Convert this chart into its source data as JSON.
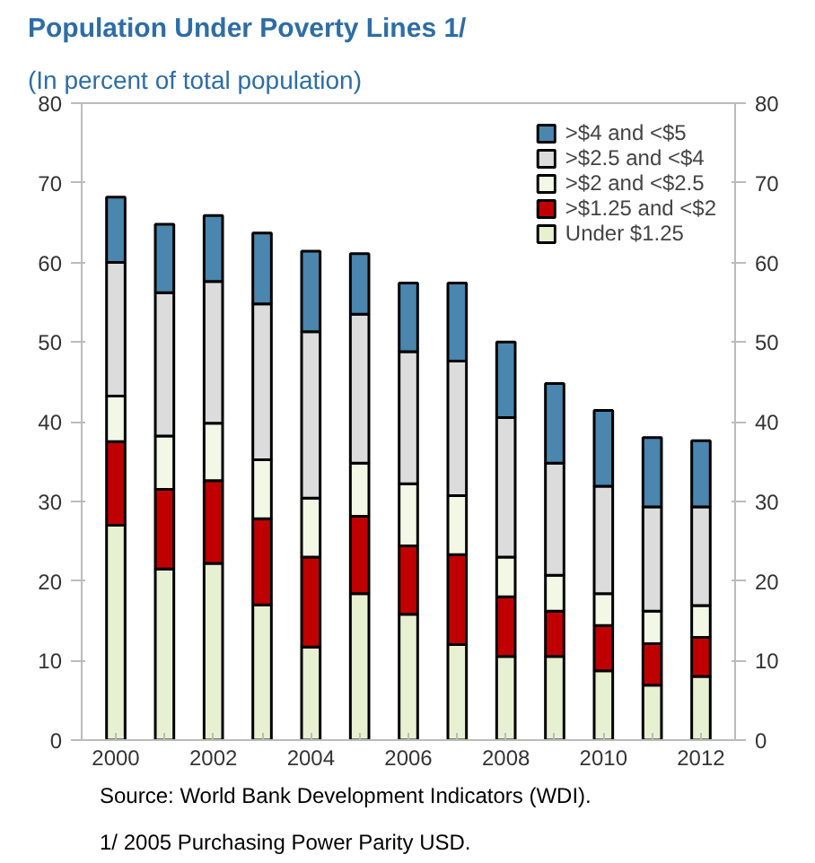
{
  "chart_data": {
    "type": "bar",
    "stacked": true,
    "title": "Population Under Poverty Lines 1/",
    "subtitle": "(In percent of total population)",
    "x": [
      2000,
      2001,
      2002,
      2003,
      2004,
      2005,
      2006,
      2007,
      2008,
      2009,
      2010,
      2011,
      2012
    ],
    "xlim": [
      1999.3,
      2012.7
    ],
    "xticks": [
      2000,
      2002,
      2004,
      2006,
      2008,
      2010,
      2012
    ],
    "ylim": [
      0,
      80
    ],
    "yticks": [
      0,
      10,
      20,
      30,
      40,
      50,
      60,
      70,
      80
    ],
    "y2lim": [
      0,
      80
    ],
    "y2ticks": [
      0,
      10,
      20,
      30,
      40,
      50,
      60,
      70,
      80
    ],
    "grid": false,
    "legend": "top right",
    "series": [
      {
        "name": "Under $1.25",
        "color": "#e8f0d2",
        "values": [
          27,
          21.5,
          22.2,
          17,
          11.7,
          18.4,
          15.8,
          12,
          10.5,
          10.5,
          8.7,
          6.9,
          8
        ]
      },
      {
        "name": ">$1.25 and <$2",
        "color": "#c00000",
        "values": [
          10.5,
          10,
          10.4,
          10.8,
          11.3,
          9.7,
          8.6,
          11.3,
          7.5,
          5.7,
          5.7,
          5.2,
          4.9
        ]
      },
      {
        "name": ">$2 and <$2.5",
        "color": "#f3f7e6",
        "values": [
          5.7,
          6.7,
          7.2,
          7.4,
          7.4,
          6.7,
          7.8,
          7.4,
          5,
          4.5,
          4,
          4.1,
          4
        ]
      },
      {
        "name": ">$2.5 and <$4",
        "color": "#dcdcdc",
        "values": [
          16.8,
          18,
          17.8,
          19.6,
          20.9,
          18.7,
          16.6,
          16.9,
          17.5,
          14.1,
          13.5,
          13.1,
          12.4
        ]
      },
      {
        "name": ">$4 and <$5",
        "color": "#4a86ad",
        "values": [
          8.2,
          8.6,
          8.3,
          8.9,
          10.1,
          7.6,
          8.6,
          9.8,
          9.5,
          10,
          9.5,
          8.7,
          8.3
        ]
      }
    ],
    "annotations": [
      "Source: World Bank Development Indicators (WDI).",
      "1/ 2005 Purchasing Power Parity USD."
    ]
  }
}
